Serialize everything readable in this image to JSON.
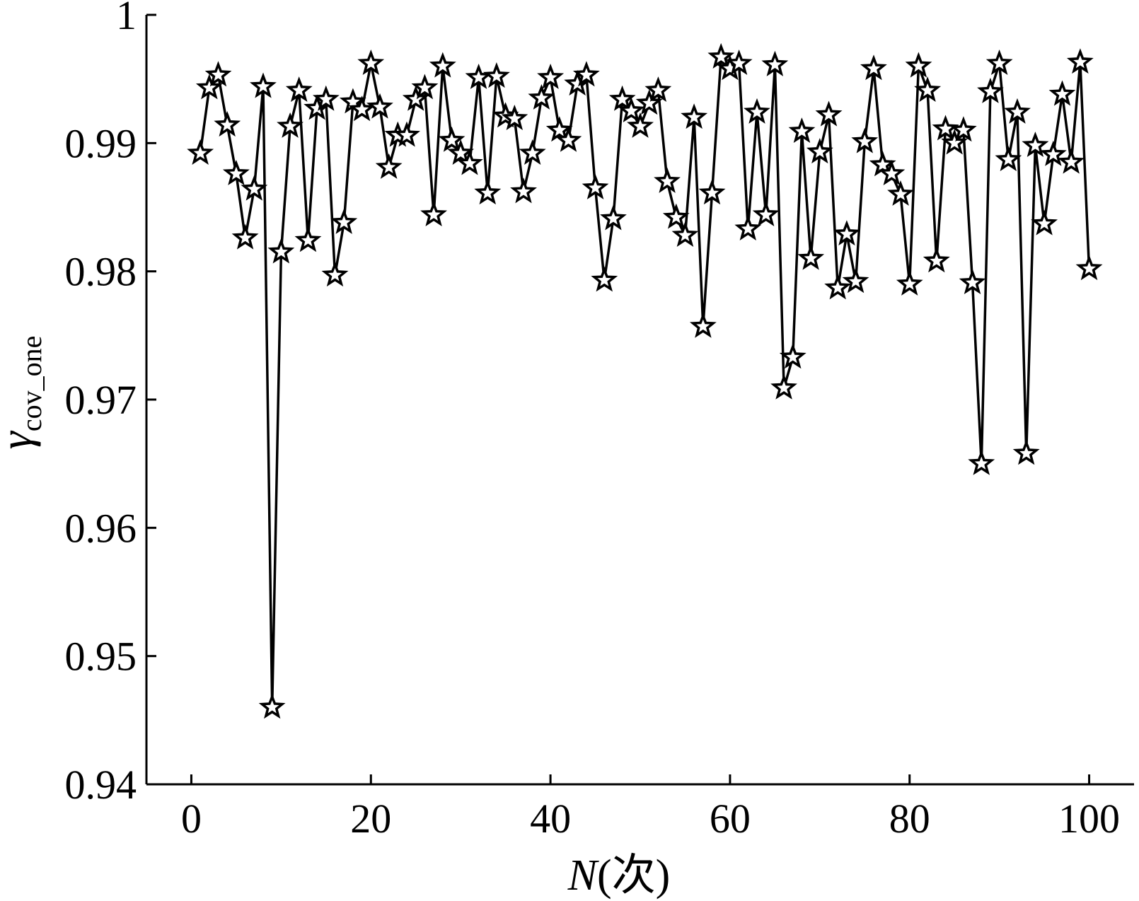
{
  "chart_data": {
    "type": "line",
    "marker": "star",
    "line_color": "#000000",
    "xlabel": {
      "main": "N",
      "suffix": "(次)"
    },
    "ylabel": {
      "main": "γ",
      "subscript": "cov_one"
    },
    "xlim": [
      -5,
      105
    ],
    "ylim": [
      0.94,
      1.0
    ],
    "xticks": [
      0,
      20,
      40,
      60,
      80,
      100
    ],
    "xtick_labels": [
      "0",
      "20",
      "40",
      "60",
      "80",
      "100"
    ],
    "yticks": [
      0.94,
      0.95,
      0.96,
      0.97,
      0.98,
      0.99,
      1.0
    ],
    "ytick_labels": [
      "0.94",
      "0.95",
      "0.96",
      "0.97",
      "0.98",
      "0.99",
      "1"
    ],
    "grid": false,
    "series": [
      {
        "x": [
          1,
          2,
          3,
          4,
          5,
          6,
          7,
          8,
          9,
          10,
          11,
          12,
          13,
          14,
          15,
          16,
          17,
          18,
          19,
          20,
          21,
          22,
          23,
          24,
          25,
          26,
          27,
          28,
          29,
          30,
          31,
          32,
          33,
          34,
          35,
          36,
          37,
          38,
          39,
          40,
          41,
          42,
          43,
          44,
          45,
          46,
          47,
          48,
          49,
          50,
          51,
          52,
          53,
          54,
          55,
          56,
          57,
          58,
          59,
          60,
          61,
          62,
          63,
          64,
          65,
          66,
          67,
          68,
          69,
          70,
          71,
          72,
          73,
          74,
          75,
          76,
          77,
          78,
          79,
          80,
          81,
          82,
          83,
          84,
          85,
          86,
          87,
          88,
          89,
          90,
          91,
          92,
          93,
          94,
          95,
          96,
          97,
          98,
          99,
          100
        ],
        "y": [
          0.9892,
          0.9943,
          0.9953,
          0.9914,
          0.9876,
          0.9826,
          0.9864,
          0.9944,
          0.946,
          0.9815,
          0.9913,
          0.9941,
          0.9824,
          0.9927,
          0.9934,
          0.9797,
          0.9838,
          0.9932,
          0.9926,
          0.9962,
          0.9928,
          0.9881,
          0.9906,
          0.9906,
          0.9934,
          0.9943,
          0.9844,
          0.996,
          0.9902,
          0.9892,
          0.9884,
          0.9951,
          0.9861,
          0.9952,
          0.9921,
          0.9919,
          0.9862,
          0.9892,
          0.9935,
          0.9951,
          0.991,
          0.9902,
          0.9946,
          0.9953,
          0.9865,
          0.9793,
          0.9841,
          0.9934,
          0.9925,
          0.9913,
          0.9931,
          0.9941,
          0.987,
          0.9842,
          0.9828,
          0.992,
          0.9757,
          0.9861,
          0.9967,
          0.9958,
          0.9962,
          0.9833,
          0.9924,
          0.9844,
          0.9961,
          0.9709,
          0.9733,
          0.9909,
          0.981,
          0.9893,
          0.9922,
          0.9787,
          0.9829,
          0.9792,
          0.9901,
          0.9958,
          0.9883,
          0.9876,
          0.986,
          0.979,
          0.996,
          0.9941,
          0.9808,
          0.9911,
          0.99,
          0.991,
          0.9791,
          0.965,
          0.994,
          0.9962,
          0.9887,
          0.9924,
          0.9658,
          0.9898,
          0.9837,
          0.9891,
          0.9938,
          0.9885,
          0.9963,
          0.9802
        ]
      }
    ]
  }
}
